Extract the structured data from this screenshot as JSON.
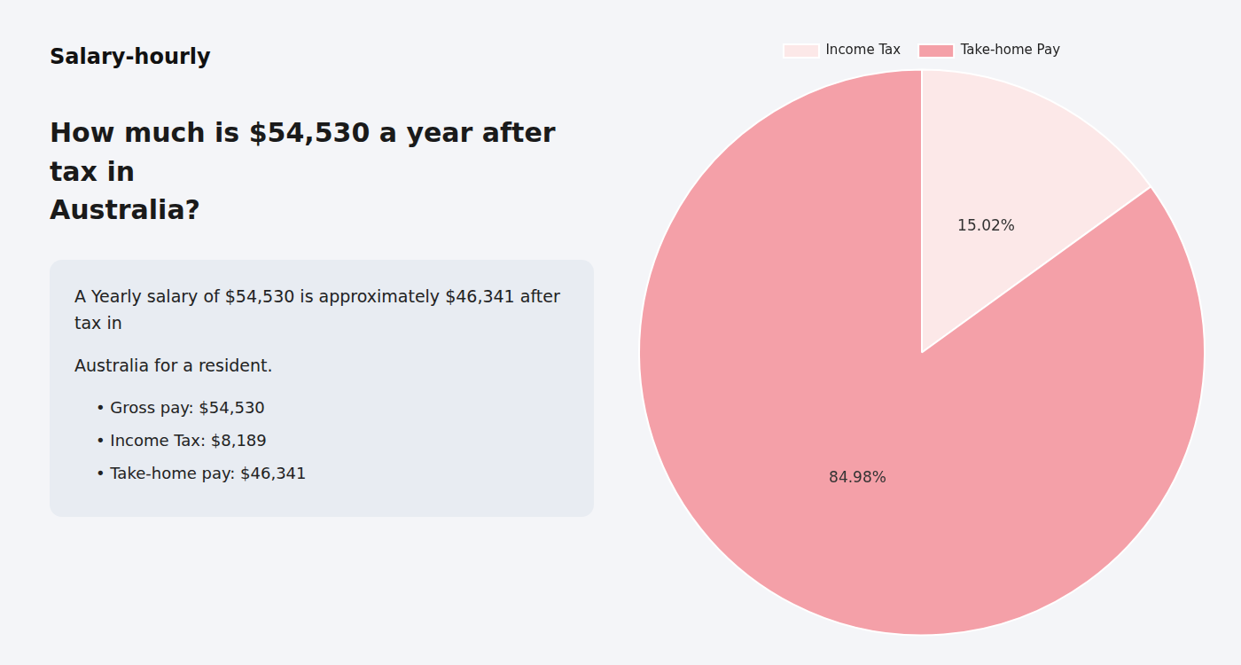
{
  "chart_data": {
    "type": "pie",
    "title": [
      "How much is $54,530 a year after tax in",
      "Australia?"
    ],
    "annotations": [
      "Salary-hourly",
      "A Yearly salary of $54,530 is approximately $46,341 after tax in",
      "Australia for a resident.",
      "• Gross pay: $54,530",
      "• Income Tax: $8,189",
      "• Take-home pay: $46,341"
    ],
    "categories": [
      "Income Tax",
      "Take-home Pay"
    ],
    "values": [
      15.02,
      84.98
    ],
    "value_labels": [
      "15.02%",
      "84.98%"
    ],
    "colors": [
      "#fce8e8",
      "#f4a0a8"
    ],
    "data_labels": true,
    "legend": "top"
  }
}
